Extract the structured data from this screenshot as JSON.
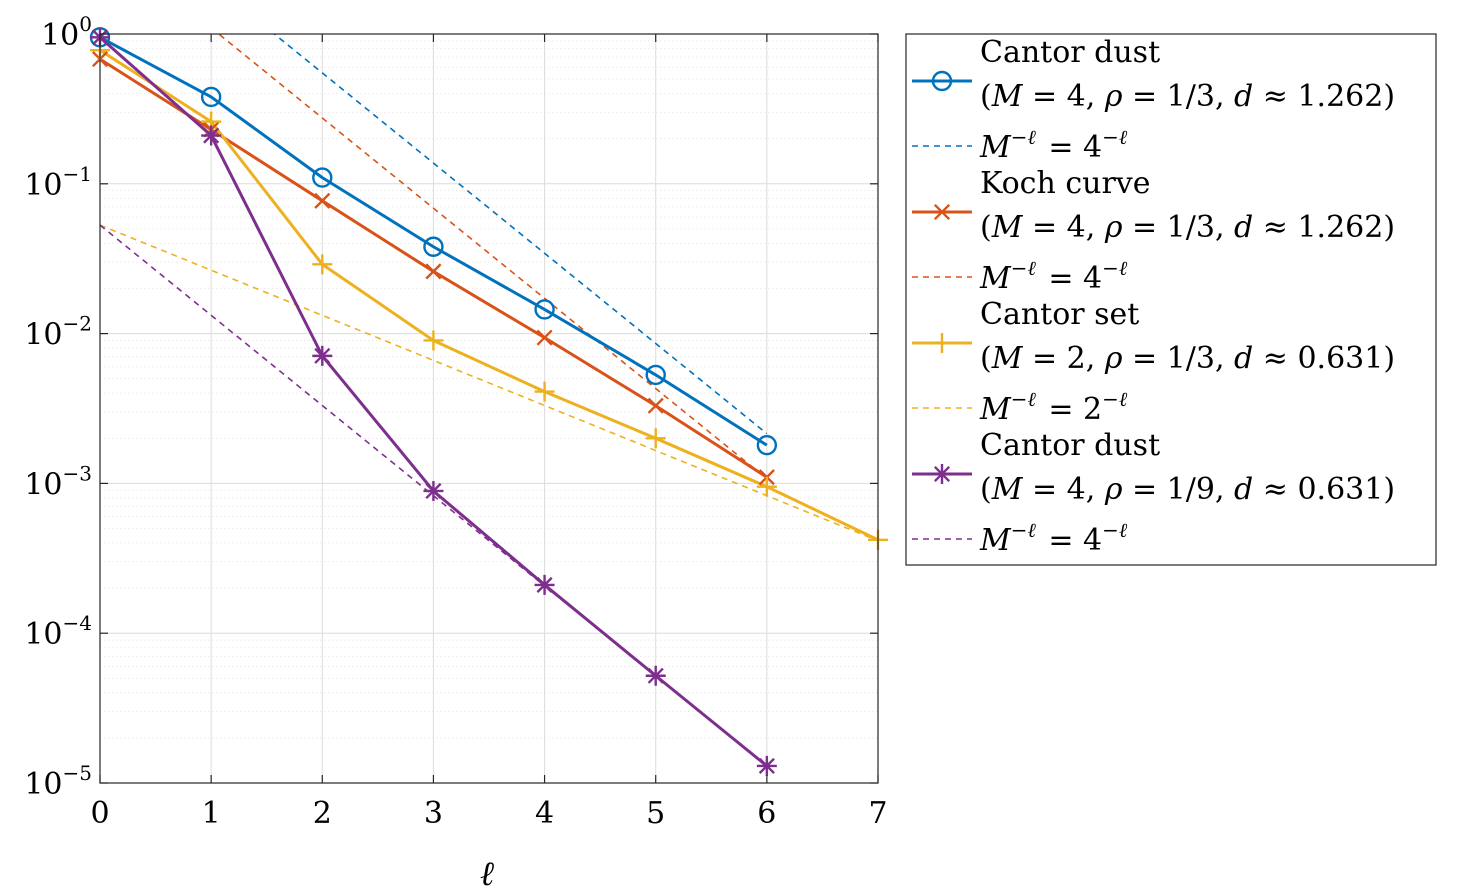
{
  "chart_data": {
    "type": "line",
    "title": "",
    "xlabel": "ℓ",
    "ylabel": "",
    "yscale": "log",
    "xlim": [
      0,
      7
    ],
    "ylim": [
      1e-05,
      1
    ],
    "grid": true,
    "legend_position": "outside-right",
    "x_ticks": [
      "0",
      "1",
      "2",
      "3",
      "4",
      "5",
      "6",
      "7"
    ],
    "y_ticks": [
      {
        "base": "10",
        "exp": "0",
        "value": 1
      },
      {
        "base": "10",
        "exp": "−1",
        "value": 0.1
      },
      {
        "base": "10",
        "exp": "−2",
        "value": 0.01
      },
      {
        "base": "10",
        "exp": "−3",
        "value": 0.001
      },
      {
        "base": "10",
        "exp": "−4",
        "value": 0.0001
      },
      {
        "base": "10",
        "exp": "−5",
        "value": 1e-05
      }
    ],
    "series": [
      {
        "name": "Cantor dust",
        "params": "(M = 4, ρ = 1/3, d ≈ 1.262)",
        "color": "#0072BD",
        "marker": "circle",
        "x": [
          0,
          1,
          2,
          3,
          4,
          5,
          6
        ],
        "values": [
          0.95,
          0.38,
          0.11,
          0.038,
          0.0145,
          0.0053,
          0.0018
        ],
        "ref_label": "M^{−ℓ} = 4^{−ℓ}",
        "ref_base": 4,
        "ref_const": 8.8,
        "ref_x": [
          0,
          6
        ]
      },
      {
        "name": "Koch curve",
        "params": "(M = 4, ρ = 1/3, d ≈ 1.262)",
        "color": "#D95319",
        "marker": "x",
        "x": [
          0,
          1,
          2,
          3,
          4,
          5,
          6
        ],
        "values": [
          0.68,
          0.23,
          0.077,
          0.026,
          0.0094,
          0.0033,
          0.0011
        ],
        "ref_label": "M^{−ℓ} = 4^{−ℓ}",
        "ref_base": 4,
        "ref_const": 4.4,
        "ref_x": [
          0,
          6
        ]
      },
      {
        "name": "Cantor set",
        "params": "(M = 2, ρ = 1/3, d ≈ 0.631)",
        "color": "#EDB120",
        "marker": "plus",
        "x": [
          0,
          1,
          2,
          3,
          4,
          5,
          6,
          7
        ],
        "values": [
          0.78,
          0.26,
          0.029,
          0.009,
          0.0041,
          0.002,
          0.00095,
          0.00042
        ],
        "ref_label": "M^{−ℓ} = 2^{−ℓ}",
        "ref_base": 2,
        "ref_const": 0.053,
        "ref_x": [
          0,
          7
        ]
      },
      {
        "name": "Cantor dust",
        "params": "(M = 4, ρ = 1/9, d ≈ 0.631)",
        "color": "#7E2F8E",
        "marker": "star",
        "x": [
          0,
          1,
          2,
          3,
          4,
          5,
          6
        ],
        "values": [
          0.95,
          0.21,
          0.0071,
          0.00089,
          0.00021,
          5.2e-05,
          1.3e-05
        ],
        "ref_label": "M^{−ℓ} = 4^{−ℓ}",
        "ref_base": 4,
        "ref_const": 0.053,
        "ref_x": [
          0,
          6
        ]
      }
    ]
  }
}
